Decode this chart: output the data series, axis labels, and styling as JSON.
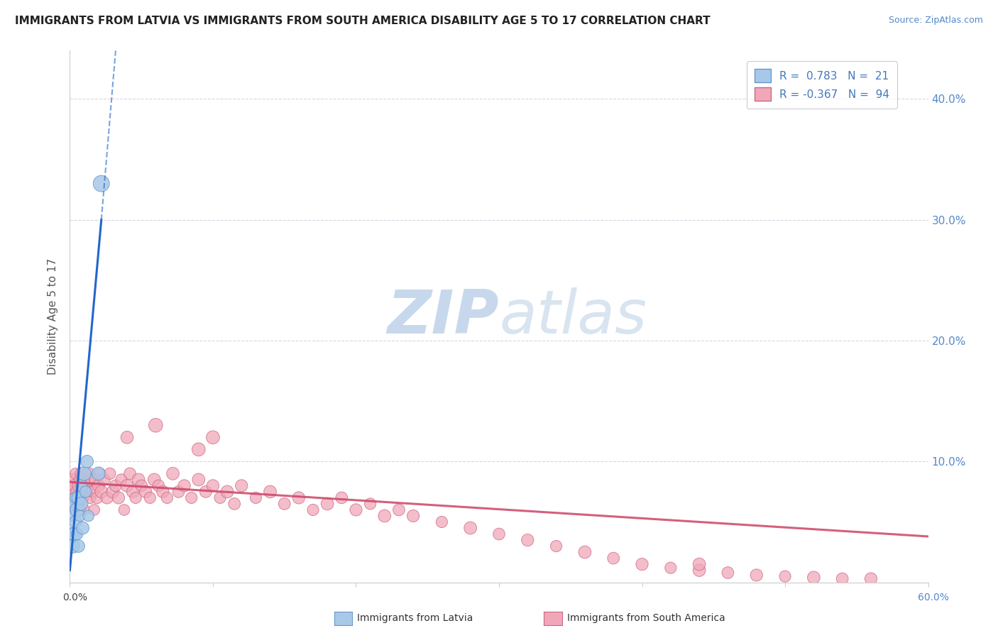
{
  "title": "IMMIGRANTS FROM LATVIA VS IMMIGRANTS FROM SOUTH AMERICA DISABILITY AGE 5 TO 17 CORRELATION CHART",
  "source": "Source: ZipAtlas.com",
  "ylabel": "Disability Age 5 to 17",
  "yticks": [
    0.0,
    0.1,
    0.2,
    0.3,
    0.4
  ],
  "ytick_labels": [
    "",
    "10.0%",
    "20.0%",
    "30.0%",
    "40.0%"
  ],
  "xlim": [
    0.0,
    0.6
  ],
  "ylim": [
    0.0,
    0.44
  ],
  "latvia_color": "#a8c8e8",
  "latvia_edge": "#6699cc",
  "latvia_line_color": "#2266cc",
  "south_america_color": "#f0a8b8",
  "south_america_edge": "#cc6688",
  "south_america_line_color": "#cc4466",
  "watermark_color": "#dde8f0",
  "grid_color": "#ddddee",
  "grid_dash_color": "#ccccdd",
  "latvia_x": [
    0.001,
    0.002,
    0.002,
    0.003,
    0.003,
    0.004,
    0.004,
    0.005,
    0.005,
    0.006,
    0.006,
    0.007,
    0.008,
    0.008,
    0.009,
    0.01,
    0.011,
    0.012,
    0.013,
    0.02,
    0.022
  ],
  "latvia_y": [
    0.04,
    0.055,
    0.03,
    0.065,
    0.04,
    0.05,
    0.07,
    0.06,
    0.04,
    0.07,
    0.03,
    0.055,
    0.065,
    0.08,
    0.045,
    0.09,
    0.075,
    0.1,
    0.055,
    0.09,
    0.33
  ],
  "latvia_sizes": [
    18,
    14,
    22,
    16,
    20,
    18,
    15,
    22,
    16,
    20,
    18,
    14,
    20,
    16,
    18,
    22,
    15,
    18,
    14,
    20,
    30
  ],
  "south_america_x": [
    0.001,
    0.002,
    0.002,
    0.003,
    0.003,
    0.004,
    0.004,
    0.005,
    0.005,
    0.006,
    0.006,
    0.007,
    0.007,
    0.008,
    0.008,
    0.009,
    0.01,
    0.01,
    0.011,
    0.012,
    0.013,
    0.014,
    0.015,
    0.016,
    0.017,
    0.018,
    0.019,
    0.02,
    0.021,
    0.022,
    0.024,
    0.026,
    0.028,
    0.03,
    0.032,
    0.034,
    0.036,
    0.038,
    0.04,
    0.042,
    0.044,
    0.046,
    0.048,
    0.05,
    0.053,
    0.056,
    0.059,
    0.062,
    0.065,
    0.068,
    0.072,
    0.076,
    0.08,
    0.085,
    0.09,
    0.095,
    0.1,
    0.105,
    0.11,
    0.115,
    0.12,
    0.13,
    0.14,
    0.15,
    0.16,
    0.17,
    0.18,
    0.19,
    0.2,
    0.21,
    0.22,
    0.23,
    0.24,
    0.26,
    0.28,
    0.3,
    0.32,
    0.34,
    0.36,
    0.38,
    0.4,
    0.42,
    0.44,
    0.46,
    0.48,
    0.5,
    0.52,
    0.54,
    0.56,
    0.04,
    0.1,
    0.44,
    0.06,
    0.09
  ],
  "south_america_y": [
    0.075,
    0.065,
    0.085,
    0.07,
    0.08,
    0.06,
    0.09,
    0.075,
    0.065,
    0.08,
    0.07,
    0.085,
    0.06,
    0.075,
    0.09,
    0.07,
    0.085,
    0.06,
    0.08,
    0.075,
    0.09,
    0.07,
    0.085,
    0.075,
    0.06,
    0.085,
    0.07,
    0.08,
    0.09,
    0.075,
    0.085,
    0.07,
    0.09,
    0.075,
    0.08,
    0.07,
    0.085,
    0.06,
    0.08,
    0.09,
    0.075,
    0.07,
    0.085,
    0.08,
    0.075,
    0.07,
    0.085,
    0.08,
    0.075,
    0.07,
    0.09,
    0.075,
    0.08,
    0.07,
    0.085,
    0.075,
    0.08,
    0.07,
    0.075,
    0.065,
    0.08,
    0.07,
    0.075,
    0.065,
    0.07,
    0.06,
    0.065,
    0.07,
    0.06,
    0.065,
    0.055,
    0.06,
    0.055,
    0.05,
    0.045,
    0.04,
    0.035,
    0.03,
    0.025,
    0.02,
    0.015,
    0.012,
    0.01,
    0.008,
    0.006,
    0.005,
    0.004,
    0.003,
    0.003,
    0.12,
    0.12,
    0.015,
    0.13,
    0.11
  ],
  "south_america_sizes": [
    16,
    14,
    18,
    15,
    17,
    16,
    14,
    18,
    15,
    17,
    16,
    14,
    18,
    15,
    17,
    16,
    18,
    14,
    17,
    15,
    18,
    16,
    17,
    15,
    14,
    18,
    16,
    17,
    15,
    18,
    16,
    17,
    15,
    18,
    16,
    17,
    15,
    14,
    18,
    16,
    17,
    15,
    18,
    16,
    17,
    15,
    18,
    16,
    17,
    15,
    18,
    16,
    17,
    15,
    18,
    16,
    17,
    15,
    18,
    16,
    17,
    15,
    18,
    16,
    17,
    15,
    18,
    16,
    17,
    15,
    18,
    16,
    17,
    15,
    18,
    16,
    17,
    15,
    18,
    16,
    17,
    15,
    18,
    16,
    17,
    15,
    18,
    16,
    17,
    18,
    20,
    18,
    22,
    20
  ],
  "lat_trend_x0": 0.0,
  "lat_trend_y0": 0.01,
  "lat_trend_x1": 0.022,
  "lat_trend_y1": 0.3,
  "lat_trend_dash_x0": 0.022,
  "lat_trend_dash_y0": 0.3,
  "lat_trend_dash_x1": 0.032,
  "lat_trend_dash_y1": 0.44,
  "sa_trend_x0": 0.0,
  "sa_trend_y0": 0.083,
  "sa_trend_x1": 0.6,
  "sa_trend_y1": 0.038
}
